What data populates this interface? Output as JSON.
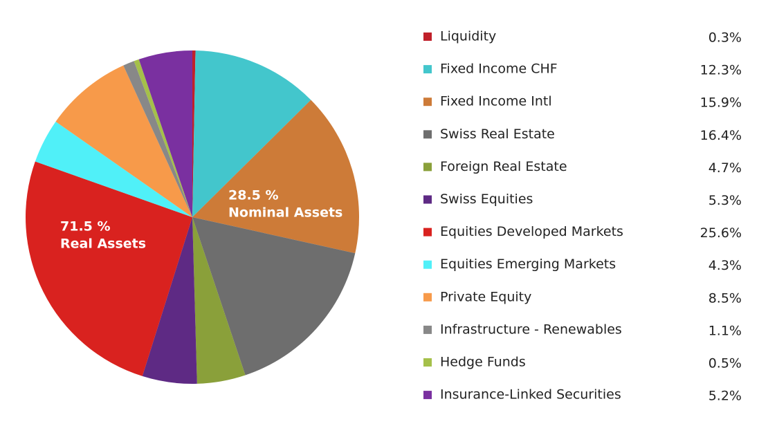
{
  "chart_data": {
    "type": "pie",
    "categories": [
      "Liquidity",
      "Fixed Income CHF",
      "Fixed Income Intl",
      "Swiss Real Estate",
      "Foreign Real Estate",
      "Swiss Equities",
      "Equities Developed Markets",
      "Equities Emerging Markets",
      "Private Equity",
      "Infrastructure - Renewables",
      "Hedge Funds",
      "Insurance-Linked Securities"
    ],
    "values": [
      0.3,
      12.3,
      15.9,
      16.4,
      4.7,
      5.3,
      25.6,
      4.3,
      8.5,
      1.1,
      0.5,
      5.2
    ],
    "value_labels": [
      "0.3%",
      "12.3%",
      "15.9%",
      "16.4%",
      "4.7%",
      "5.3%",
      "25.6%",
      "4.3%",
      "8.5%",
      "1.1%",
      "0.5%",
      "5.2%"
    ],
    "colors": [
      "#c0202a",
      "#43c6cc",
      "#cd7b38",
      "#6e6e6e",
      "#8aa03a",
      "#5e2a84",
      "#d9221f",
      "#50f0f8",
      "#f79a4a",
      "#888888",
      "#a5c04a",
      "#7a30a0"
    ],
    "annotations": [
      [
        "28.5 %",
        "Nominal Assets"
      ],
      [
        "71.5 %",
        "Real Assets"
      ]
    ]
  }
}
